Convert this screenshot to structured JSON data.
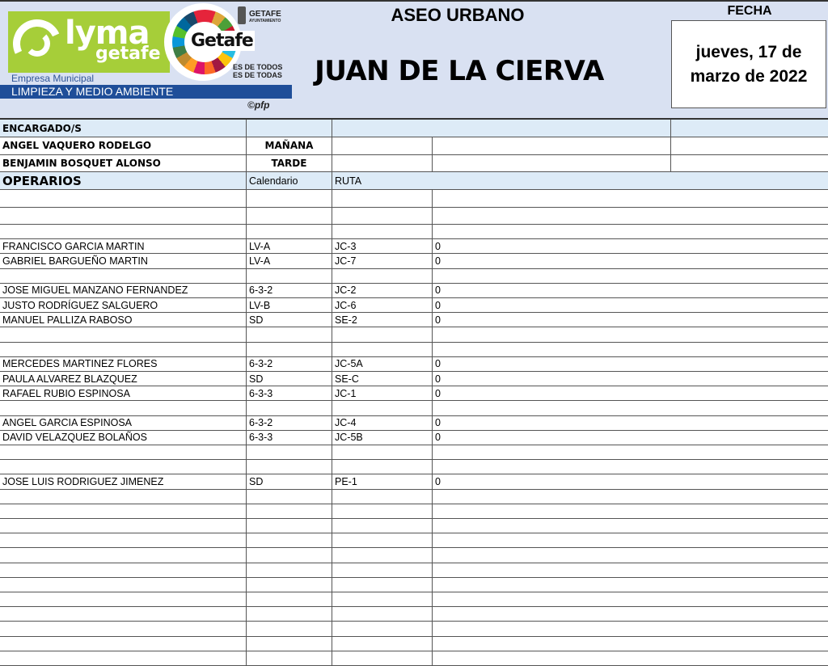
{
  "header": {
    "logo": {
      "brand": "lyma",
      "brand_sub": "getafe",
      "city_logo": "Getafe",
      "slogan_1": "ES DE TODOS",
      "slogan_2": "ES DE TODAS",
      "ayuntamiento": "GETAFE",
      "ayuntamiento_sub": "AYUNTAMIENTO",
      "empresa": "Empresa Municipal",
      "division": "LIMPIEZA Y MEDIO AMBIENTE"
    },
    "copyright": "©pfp",
    "title": "ASEO URBANO",
    "subtitle": "JUAN DE LA CIERVA",
    "fecha_label": "FECHA",
    "fecha_value": "jueves, 17 de marzo de 2022"
  },
  "encargados": {
    "label": "ENCARGADO/S",
    "rows": [
      {
        "name": "ANGEL VAQUERO RODELGO",
        "turno": "MAÑANA"
      },
      {
        "name": "BENJAMIN BOSQUET ALONSO",
        "turno": "TARDE"
      }
    ]
  },
  "operarios": {
    "label": "OPERARIOS",
    "col_calendario": "Calendario",
    "col_ruta": "RUTA",
    "rows": [
      {
        "name": "",
        "cal": "",
        "ruta": "",
        "val": ""
      },
      {
        "name": "",
        "cal": "",
        "ruta": "",
        "val": ""
      },
      {
        "name": "",
        "cal": "",
        "ruta": "",
        "val": ""
      },
      {
        "name": "FRANCISCO GARCIA MARTIN",
        "cal": "LV-A",
        "ruta": "JC-3",
        "val": "0"
      },
      {
        "name": "GABRIEL BARGUEÑO MARTIN",
        "cal": "LV-A",
        "ruta": "JC-7",
        "val": "0"
      },
      {
        "name": "",
        "cal": "",
        "ruta": "",
        "val": ""
      },
      {
        "name": "JOSE MIGUEL MANZANO FERNANDEZ",
        "cal": "6-3-2",
        "ruta": "JC-2",
        "val": "0"
      },
      {
        "name": "JUSTO RODRÍGUEZ SALGUERO",
        "cal": "LV-B",
        "ruta": "JC-6",
        "val": "0"
      },
      {
        "name": "MANUEL PALLIZA RABOSO",
        "cal": "SD",
        "ruta": "SE-2",
        "val": "0"
      },
      {
        "name": "",
        "cal": "",
        "ruta": "",
        "val": ""
      },
      {
        "name": "",
        "cal": "",
        "ruta": "",
        "val": ""
      },
      {
        "name": "MERCEDES MARTINEZ FLORES",
        "cal": "6-3-2",
        "ruta": "JC-5A",
        "val": "0"
      },
      {
        "name": "PAULA ALVAREZ BLAZQUEZ",
        "cal": "SD",
        "ruta": "SE-C",
        "val": "0"
      },
      {
        "name": "RAFAEL RUBIO ESPINOSA",
        "cal": "6-3-3",
        "ruta": "JC-1",
        "val": "0"
      },
      {
        "name": "",
        "cal": "",
        "ruta": "",
        "val": ""
      },
      {
        "name": "ANGEL GARCIA ESPINOSA",
        "cal": "6-3-2",
        "ruta": "JC-4",
        "val": "0"
      },
      {
        "name": "DAVID VELAZQUEZ BOLAÑOS",
        "cal": "6-3-3",
        "ruta": "JC-5B",
        "val": "0"
      },
      {
        "name": "",
        "cal": "",
        "ruta": "",
        "val": ""
      },
      {
        "name": "",
        "cal": "",
        "ruta": "",
        "val": ""
      },
      {
        "name": "JOSE LUIS RODRIGUEZ JIMENEZ",
        "cal": "SD",
        "ruta": "PE-1",
        "val": "0"
      },
      {
        "name": "",
        "cal": "",
        "ruta": "",
        "val": ""
      },
      {
        "name": "",
        "cal": "",
        "ruta": "",
        "val": ""
      },
      {
        "name": "",
        "cal": "",
        "ruta": "",
        "val": ""
      },
      {
        "name": "",
        "cal": "",
        "ruta": "",
        "val": ""
      },
      {
        "name": "",
        "cal": "",
        "ruta": "",
        "val": ""
      },
      {
        "name": "",
        "cal": "",
        "ruta": "",
        "val": ""
      },
      {
        "name": "",
        "cal": "",
        "ruta": "",
        "val": ""
      },
      {
        "name": "",
        "cal": "",
        "ruta": "",
        "val": ""
      },
      {
        "name": "",
        "cal": "",
        "ruta": "",
        "val": ""
      },
      {
        "name": "",
        "cal": "",
        "ruta": "",
        "val": ""
      },
      {
        "name": "",
        "cal": "",
        "ruta": "",
        "val": ""
      },
      {
        "name": "",
        "cal": "",
        "ruta": "",
        "val": ""
      }
    ]
  }
}
